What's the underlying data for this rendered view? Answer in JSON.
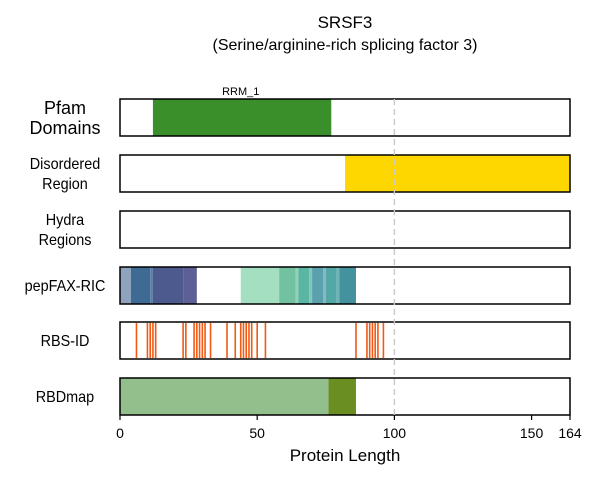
{
  "chart_data": {
    "type": "track",
    "title": "SRSF3",
    "subtitle": "(Serine/arginine-rich splicing factor 3)",
    "xlabel": "Protein Length",
    "xlim": [
      0,
      164
    ],
    "xticks": [
      0,
      50,
      100,
      150,
      164
    ],
    "xtick_labels": [
      "0",
      "50",
      "100",
      "150",
      "164"
    ],
    "reference_line": 100,
    "tracks": [
      {
        "label_lines": [
          "Pfam",
          "Domains"
        ],
        "segments": [
          {
            "start": 12,
            "end": 77,
            "color": "#3a8f2a"
          }
        ],
        "annotations": [
          {
            "text": "RRM_1",
            "at": 44
          }
        ]
      },
      {
        "label_lines": [
          "Disordered",
          "Region"
        ],
        "segments": [
          {
            "start": 82,
            "end": 164,
            "color": "#ffd700"
          }
        ]
      },
      {
        "label_lines": [
          "Hydra",
          "Regions"
        ],
        "segments": []
      },
      {
        "label_lines": [
          "pepFAX-RIC"
        ],
        "segments": [
          {
            "start": 0,
            "end": 4,
            "color": "#8fa3bf"
          },
          {
            "start": 4,
            "end": 11,
            "color": "#3e6a93"
          },
          {
            "start": 11,
            "end": 12,
            "color": "#5a7fa6"
          },
          {
            "start": 12,
            "end": 23,
            "color": "#4c5a8e"
          },
          {
            "start": 23,
            "end": 28,
            "color": "#5e5f96"
          },
          {
            "start": 44,
            "end": 58,
            "color": "#a3dfc0"
          },
          {
            "start": 58,
            "end": 64,
            "color": "#72c2a2"
          },
          {
            "start": 64,
            "end": 65,
            "color": "#8fd4b5"
          },
          {
            "start": 65,
            "end": 69,
            "color": "#5bb5a3"
          },
          {
            "start": 69,
            "end": 70,
            "color": "#80c8b8"
          },
          {
            "start": 70,
            "end": 74,
            "color": "#5aa0ad"
          },
          {
            "start": 74,
            "end": 75,
            "color": "#7fb9be"
          },
          {
            "start": 75,
            "end": 79,
            "color": "#53a7a7"
          },
          {
            "start": 79,
            "end": 80,
            "color": "#70b4b8"
          },
          {
            "start": 80,
            "end": 86,
            "color": "#45929f"
          }
        ]
      },
      {
        "label_lines": [
          "RBS-ID"
        ],
        "sites_color": "#f05a14",
        "sites": [
          6,
          10,
          11,
          12,
          13,
          23,
          24,
          27,
          28,
          29,
          30,
          31,
          33,
          39,
          42,
          44,
          45,
          46,
          47,
          48,
          50,
          53,
          86,
          90,
          91,
          92,
          93,
          94,
          96
        ]
      },
      {
        "label_lines": [
          "RBDmap"
        ],
        "segments": [
          {
            "start": 0,
            "end": 76,
            "color": "#93bf8c"
          },
          {
            "start": 76,
            "end": 86,
            "color": "#6b8e23"
          }
        ]
      }
    ]
  }
}
